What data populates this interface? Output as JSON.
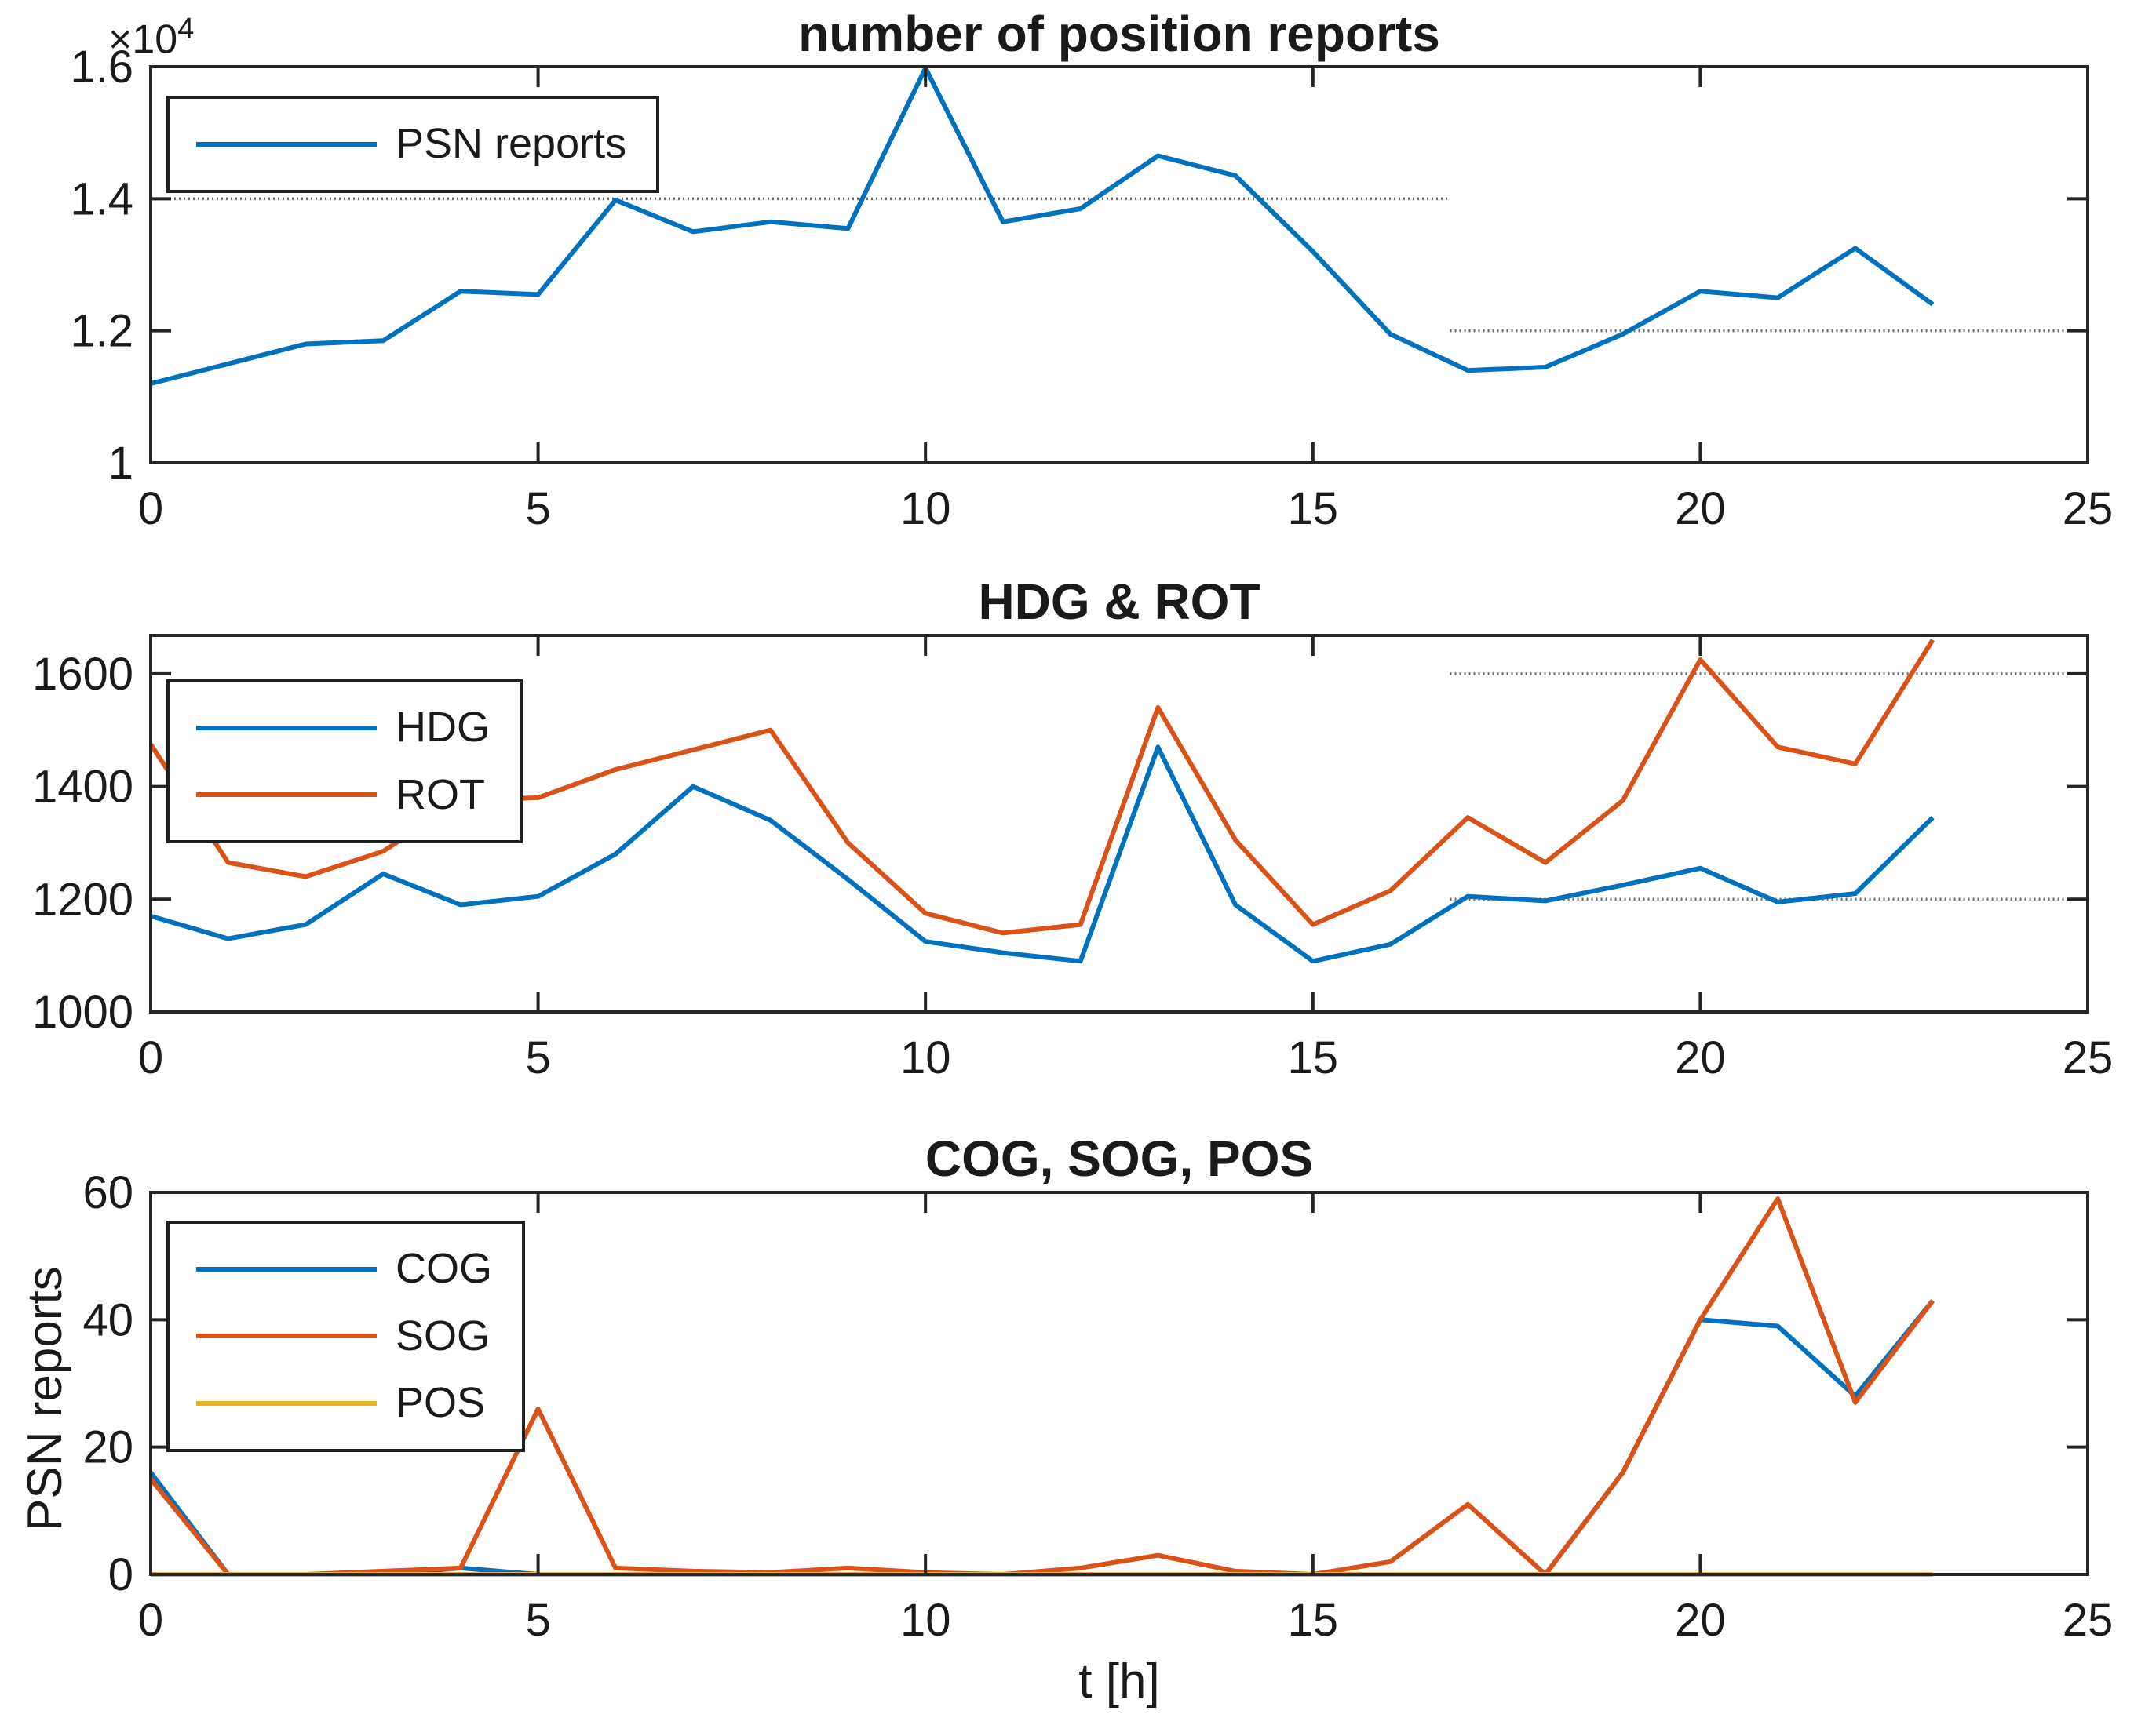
{
  "figure": {
    "background": "#ffffff",
    "colors": {
      "blue": "#0072BD",
      "orange": "#D95319",
      "yellow": "#EDB120",
      "threshold": "#6b6b6b",
      "axis": "#252525"
    }
  },
  "chart_data": [
    {
      "type": "line",
      "title": "number of position reports",
      "xlabel": "",
      "ylabel": "",
      "y_multiplier_base": "×10",
      "y_multiplier_exp": "4",
      "xlim": [
        0,
        25
      ],
      "ylim": [
        1.0,
        1.6
      ],
      "xticks": [
        0,
        5,
        10,
        15,
        20,
        25
      ],
      "xtick_labels": [
        "0",
        "5",
        "10",
        "15",
        "20",
        "25"
      ],
      "yticks": [
        1.0,
        1.2,
        1.4,
        1.6
      ],
      "ytick_labels": [
        "1",
        "1.2",
        "1.4",
        "1.6"
      ],
      "grid": false,
      "legend_position": "top-left",
      "x": [
        0,
        1,
        2,
        3,
        4,
        5,
        6,
        7,
        8,
        9,
        10,
        11,
        12,
        13,
        14,
        15,
        16,
        17,
        18,
        19,
        20,
        21,
        22,
        23
      ],
      "series": [
        {
          "name": "PSN reports",
          "color_key": "blue",
          "values": [
            1.12,
            1.15,
            1.18,
            1.185,
            1.26,
            1.255,
            1.398,
            1.35,
            1.365,
            1.355,
            1.598,
            1.365,
            1.385,
            1.465,
            1.435,
            1.32,
            1.195,
            1.14,
            1.145,
            1.195,
            1.26,
            1.25,
            1.325,
            1.24
          ]
        }
      ],
      "thresholds": [
        {
          "y": 1.4,
          "x0": 0,
          "x1": 16.77
        },
        {
          "y": 1.2,
          "x0": 16.77,
          "x1": 25
        }
      ],
      "legend": [
        "PSN reports"
      ]
    },
    {
      "type": "line",
      "title": "HDG & ROT",
      "xlabel": "",
      "ylabel": "",
      "xlim": [
        0,
        25
      ],
      "ylim": [
        1000,
        1668
      ],
      "xticks": [
        0,
        5,
        10,
        15,
        20,
        25
      ],
      "xtick_labels": [
        "0",
        "5",
        "10",
        "15",
        "20",
        "25"
      ],
      "yticks": [
        1000,
        1200,
        1400,
        1600
      ],
      "ytick_labels": [
        "1000",
        "1200",
        "1400",
        "1600"
      ],
      "grid": false,
      "legend_position": "top-left",
      "x": [
        0,
        1,
        2,
        3,
        4,
        5,
        6,
        7,
        8,
        9,
        10,
        11,
        12,
        13,
        14,
        15,
        16,
        17,
        18,
        19,
        20,
        21,
        22,
        23
      ],
      "series": [
        {
          "name": "HDG",
          "color_key": "blue",
          "values": [
            1170,
            1130,
            1155,
            1245,
            1190,
            1205,
            1280,
            1400,
            1340,
            1235,
            1125,
            1105,
            1090,
            1470,
            1190,
            1090,
            1120,
            1205,
            1197,
            1225,
            1255,
            1195,
            1210,
            1345
          ]
        },
        {
          "name": "ROT",
          "color_key": "orange",
          "values": [
            1475,
            1265,
            1240,
            1285,
            1375,
            1380,
            1430,
            1465,
            1500,
            1300,
            1175,
            1140,
            1155,
            1540,
            1305,
            1155,
            1215,
            1345,
            1265,
            1375,
            1625,
            1470,
            1440,
            1660
          ]
        }
      ],
      "thresholds": [
        {
          "y": 1600,
          "x0": 16.77,
          "x1": 25
        },
        {
          "y": 1200,
          "x0": 16.77,
          "x1": 25
        }
      ],
      "legend": [
        "HDG",
        "ROT"
      ]
    },
    {
      "type": "line",
      "title": "COG, SOG, POS",
      "xlabel": "t [h]",
      "ylabel": "PSN reports",
      "xlim": [
        0,
        25
      ],
      "ylim": [
        0,
        60
      ],
      "xticks": [
        0,
        5,
        10,
        15,
        20,
        25
      ],
      "xtick_labels": [
        "0",
        "5",
        "10",
        "15",
        "20",
        "25"
      ],
      "yticks": [
        0,
        20,
        40,
        60
      ],
      "ytick_labels": [
        "0",
        "20",
        "40",
        "60"
      ],
      "grid": false,
      "legend_position": "top-left",
      "x": [
        0,
        1,
        2,
        3,
        4,
        5,
        6,
        7,
        8,
        9,
        10,
        11,
        12,
        13,
        14,
        15,
        16,
        17,
        18,
        19,
        20,
        21,
        22,
        23
      ],
      "series": [
        {
          "name": "COG",
          "color_key": "blue",
          "values": [
            16,
            0,
            0,
            0,
            1,
            0,
            0,
            0,
            0,
            0,
            0,
            0,
            0,
            0,
            0,
            0,
            0,
            0,
            0,
            16,
            40,
            39,
            28,
            43
          ]
        },
        {
          "name": "SOG",
          "color_key": "orange",
          "values": [
            15,
            0,
            0,
            0.5,
            1,
            26,
            1,
            0.5,
            0.3,
            1,
            0.3,
            0,
            1,
            3,
            0.5,
            0,
            2,
            11,
            0,
            16,
            40,
            59,
            27,
            43
          ]
        },
        {
          "name": "POS",
          "color_key": "yellow",
          "values": [
            0,
            0,
            0,
            0,
            0,
            0,
            0,
            0,
            0,
            0,
            0,
            0,
            0,
            0,
            0,
            0,
            0,
            0,
            0,
            0,
            0,
            0,
            0,
            0
          ]
        }
      ],
      "thresholds": [],
      "legend": [
        "COG",
        "SOG",
        "POS"
      ]
    }
  ]
}
